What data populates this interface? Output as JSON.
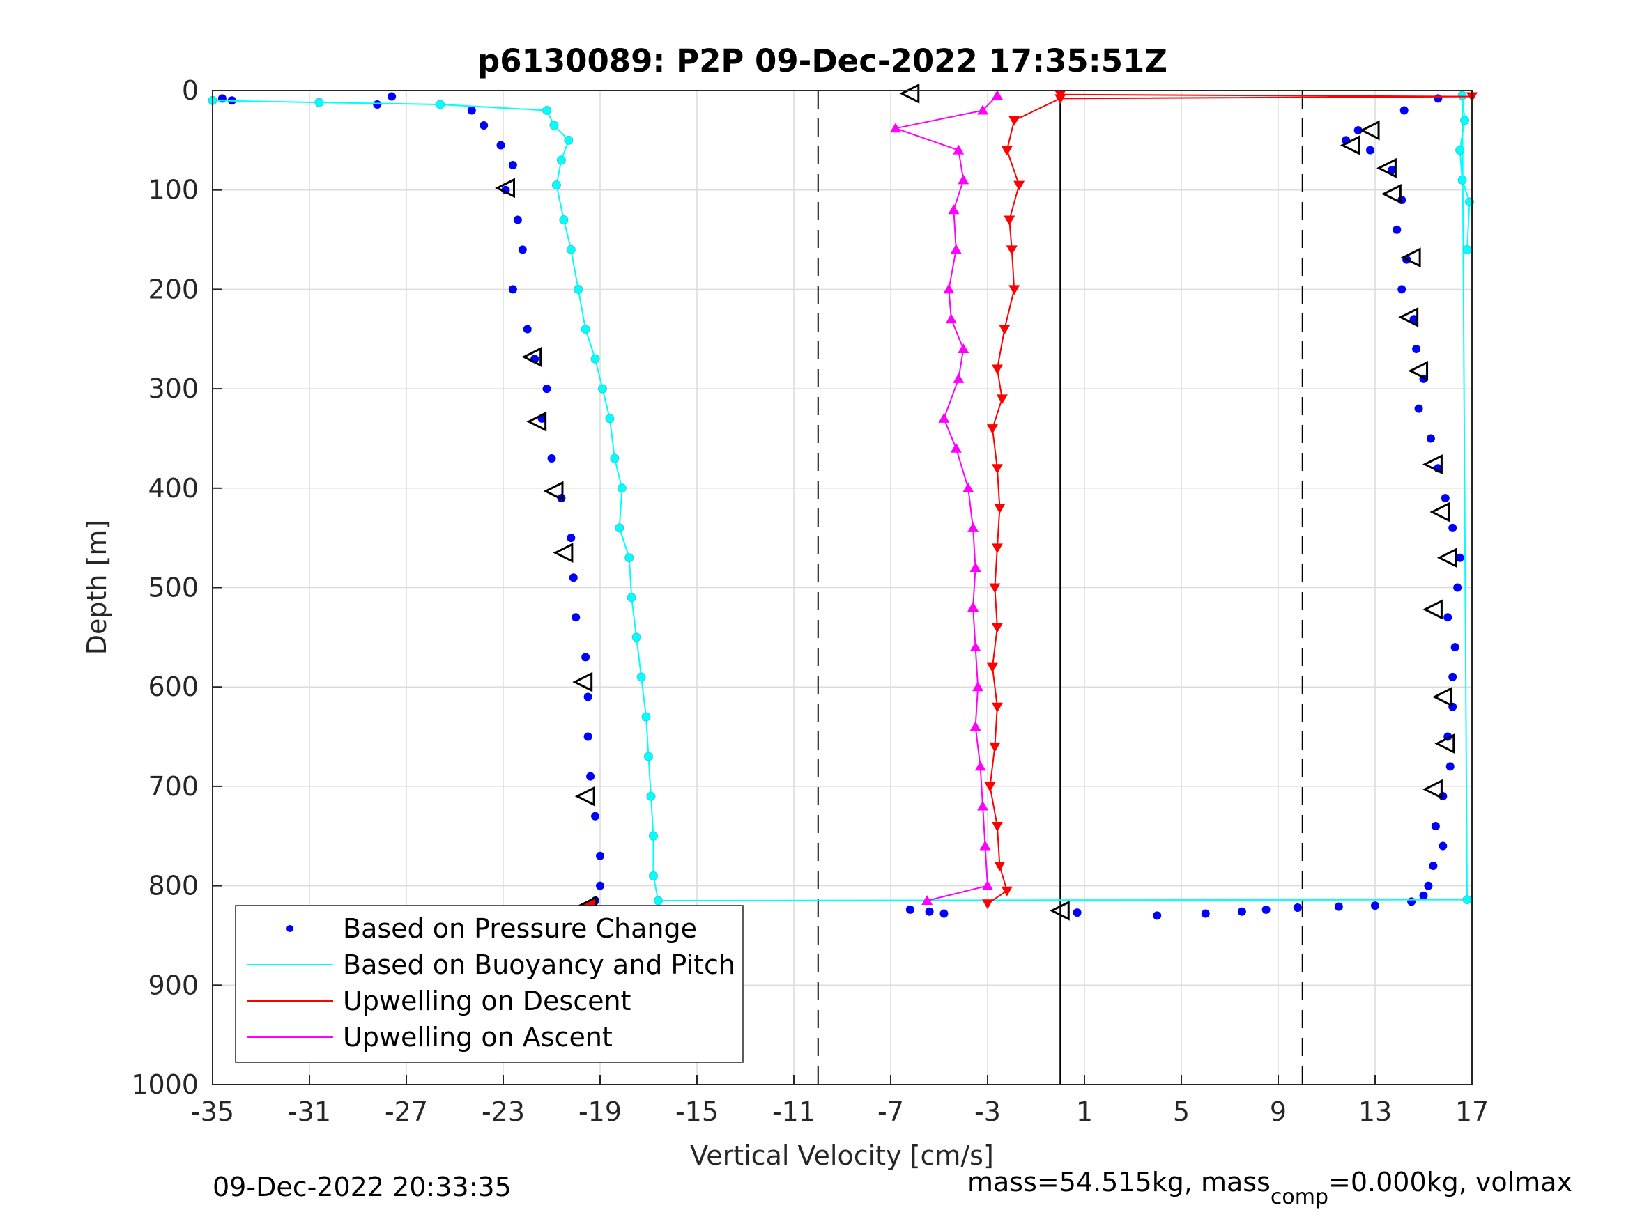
{
  "chart_data": {
    "type": "scatter",
    "title": "p6130089: P2P 09-Dec-2022 17:35:51Z",
    "xlabel": "Vertical Velocity [cm/s]",
    "ylabel": "Depth [m]",
    "xlim": [
      -35,
      17
    ],
    "ylim": [
      0,
      1000
    ],
    "y_reversed": true,
    "grid": true,
    "x_ticks": [
      -35,
      -31,
      -27,
      -23,
      -19,
      -15,
      -11,
      -7,
      -3,
      1,
      5,
      9,
      13,
      17
    ],
    "y_ticks": [
      0,
      100,
      200,
      300,
      400,
      500,
      600,
      700,
      800,
      900,
      1000
    ],
    "reference_lines": [
      {
        "x": -10,
        "style": "dashed",
        "color": "#000000"
      },
      {
        "x": 10,
        "style": "dashed",
        "color": "#000000"
      },
      {
        "x": 0,
        "style": "solid",
        "color": "#000000"
      }
    ],
    "legend": {
      "position": "bottom-left",
      "entries": [
        {
          "label": "Based on Pressure Change",
          "color": "#0000ff",
          "marker": "dot"
        },
        {
          "label": "Based on Buoyancy and Pitch",
          "color": "#00ffff",
          "marker": "line"
        },
        {
          "label": "Upwelling on Descent",
          "color": "#ff0000",
          "marker": "line"
        },
        {
          "label": "Upwelling on Ascent",
          "color": "#ff00ff",
          "marker": "line"
        }
      ]
    },
    "series": [
      {
        "name": "Based on Pressure Change",
        "color": "#0000ff",
        "segment": "descent",
        "points": [
          [
            -34.6,
            8
          ],
          [
            -34.2,
            10
          ],
          [
            -28.2,
            14
          ],
          [
            -27.6,
            6
          ],
          [
            -24.3,
            20
          ],
          [
            -23.8,
            35
          ],
          [
            -23.1,
            55
          ],
          [
            -22.6,
            75
          ],
          [
            -22.9,
            100
          ],
          [
            -22.4,
            130
          ],
          [
            -22.2,
            160
          ],
          [
            -22.6,
            200
          ],
          [
            -22.0,
            240
          ],
          [
            -21.7,
            270
          ],
          [
            -21.2,
            300
          ],
          [
            -21.4,
            330
          ],
          [
            -21.0,
            370
          ],
          [
            -20.6,
            410
          ],
          [
            -20.2,
            450
          ],
          [
            -20.1,
            490
          ],
          [
            -20.0,
            530
          ],
          [
            -19.6,
            570
          ],
          [
            -19.5,
            610
          ],
          [
            -19.5,
            650
          ],
          [
            -19.4,
            690
          ],
          [
            -19.2,
            730
          ],
          [
            -19.0,
            770
          ],
          [
            -19.0,
            800
          ],
          [
            -19.2,
            815
          ]
        ]
      },
      {
        "name": "Based on Pressure Change",
        "color": "#0000ff",
        "segment": "ascent",
        "points": [
          [
            -6.2,
            824
          ],
          [
            -5.4,
            826
          ],
          [
            -4.8,
            828
          ],
          [
            0.7,
            827
          ],
          [
            4.0,
            830
          ],
          [
            6.0,
            828
          ],
          [
            7.5,
            826
          ],
          [
            8.5,
            824
          ],
          [
            9.8,
            822
          ],
          [
            11.5,
            821
          ],
          [
            13.0,
            820
          ],
          [
            14.5,
            816
          ],
          [
            15.0,
            810
          ],
          [
            15.2,
            800
          ],
          [
            15.4,
            780
          ],
          [
            15.8,
            760
          ],
          [
            15.5,
            740
          ],
          [
            15.8,
            710
          ],
          [
            16.1,
            680
          ],
          [
            16.0,
            650
          ],
          [
            16.2,
            620
          ],
          [
            16.2,
            590
          ],
          [
            16.3,
            560
          ],
          [
            16.0,
            530
          ],
          [
            16.4,
            500
          ],
          [
            16.5,
            470
          ],
          [
            16.2,
            440
          ],
          [
            15.9,
            410
          ],
          [
            15.6,
            380
          ],
          [
            15.3,
            350
          ],
          [
            14.8,
            320
          ],
          [
            15.0,
            290
          ],
          [
            14.7,
            260
          ],
          [
            14.6,
            230
          ],
          [
            14.1,
            200
          ],
          [
            14.3,
            170
          ],
          [
            13.9,
            140
          ],
          [
            14.1,
            110
          ],
          [
            13.7,
            80
          ],
          [
            12.8,
            60
          ],
          [
            12.3,
            40
          ],
          [
            14.2,
            20
          ],
          [
            15.6,
            8
          ],
          [
            11.8,
            50
          ]
        ]
      },
      {
        "name": "Based on Buoyancy and Pitch",
        "color": "#00ffff",
        "points": [
          [
            -35.0,
            10
          ],
          [
            -30.6,
            12
          ],
          [
            -25.6,
            14
          ],
          [
            -21.2,
            20
          ],
          [
            -20.9,
            35
          ],
          [
            -20.3,
            50
          ],
          [
            -20.6,
            70
          ],
          [
            -20.8,
            95
          ],
          [
            -20.5,
            130
          ],
          [
            -20.2,
            160
          ],
          [
            -19.9,
            200
          ],
          [
            -19.6,
            240
          ],
          [
            -19.2,
            270
          ],
          [
            -18.9,
            300
          ],
          [
            -18.6,
            330
          ],
          [
            -18.4,
            370
          ],
          [
            -18.1,
            400
          ],
          [
            -18.2,
            440
          ],
          [
            -17.8,
            470
          ],
          [
            -17.7,
            510
          ],
          [
            -17.5,
            550
          ],
          [
            -17.3,
            590
          ],
          [
            -17.1,
            630
          ],
          [
            -17.0,
            670
          ],
          [
            -16.9,
            710
          ],
          [
            -16.8,
            750
          ],
          [
            -16.8,
            790
          ],
          [
            -16.6,
            815
          ],
          [
            16.8,
            814
          ],
          [
            16.6,
            5
          ],
          [
            16.7,
            30
          ],
          [
            16.5,
            60
          ],
          [
            16.6,
            90
          ],
          [
            16.9,
            112
          ],
          [
            16.8,
            160
          ]
        ]
      },
      {
        "name": "Upwelling on Descent",
        "color": "#ff0000",
        "points": [
          [
            0,
            4
          ],
          [
            17,
            6
          ],
          [
            0,
            8
          ],
          [
            -1.9,
            30
          ],
          [
            -2.2,
            60
          ],
          [
            -1.7,
            95
          ],
          [
            -2.1,
            130
          ],
          [
            -2.0,
            160
          ],
          [
            -1.9,
            200
          ],
          [
            -2.3,
            240
          ],
          [
            -2.6,
            280
          ],
          [
            -2.4,
            310
          ],
          [
            -2.8,
            340
          ],
          [
            -2.6,
            380
          ],
          [
            -2.5,
            420
          ],
          [
            -2.6,
            460
          ],
          [
            -2.7,
            500
          ],
          [
            -2.6,
            540
          ],
          [
            -2.8,
            580
          ],
          [
            -2.6,
            620
          ],
          [
            -2.7,
            660
          ],
          [
            -2.9,
            700
          ],
          [
            -2.6,
            740
          ],
          [
            -2.5,
            780
          ],
          [
            -2.2,
            805
          ],
          [
            -3.0,
            818
          ]
        ]
      },
      {
        "name": "Upwelling on Ascent",
        "color": "#ff00ff",
        "points": [
          [
            -2.6,
            5
          ],
          [
            -3.2,
            20
          ],
          [
            -6.8,
            38
          ],
          [
            -4.2,
            60
          ],
          [
            -4.0,
            90
          ],
          [
            -4.4,
            120
          ],
          [
            -4.3,
            160
          ],
          [
            -4.6,
            200
          ],
          [
            -4.5,
            230
          ],
          [
            -4.0,
            260
          ],
          [
            -4.2,
            290
          ],
          [
            -4.8,
            330
          ],
          [
            -4.3,
            360
          ],
          [
            -3.8,
            400
          ],
          [
            -3.6,
            440
          ],
          [
            -3.5,
            480
          ],
          [
            -3.6,
            520
          ],
          [
            -3.5,
            560
          ],
          [
            -3.4,
            600
          ],
          [
            -3.5,
            640
          ],
          [
            -3.3,
            680
          ],
          [
            -3.2,
            720
          ],
          [
            -3.1,
            760
          ],
          [
            -3.0,
            800
          ],
          [
            -5.5,
            815
          ]
        ]
      }
    ],
    "direction_markers": [
      {
        "x": -6.2,
        "y": 3,
        "color": "#000000"
      },
      {
        "x": -22.9,
        "y": 98,
        "color": "#000000"
      },
      {
        "x": -21.8,
        "y": 268,
        "color": "#000000"
      },
      {
        "x": -21.6,
        "y": 333,
        "color": "#000000"
      },
      {
        "x": -20.9,
        "y": 403,
        "color": "#000000"
      },
      {
        "x": -20.5,
        "y": 465,
        "color": "#000000"
      },
      {
        "x": -19.7,
        "y": 595,
        "color": "#000000"
      },
      {
        "x": -19.6,
        "y": 710,
        "color": "#000000"
      },
      {
        "x": -19.5,
        "y": 820,
        "color": "#ff0000"
      },
      {
        "x": 12.8,
        "y": 40,
        "color": "#000000"
      },
      {
        "x": 12.0,
        "y": 55,
        "color": "#000000"
      },
      {
        "x": 13.5,
        "y": 78,
        "color": "#000000"
      },
      {
        "x": 13.7,
        "y": 104,
        "color": "#000000"
      },
      {
        "x": 14.5,
        "y": 168,
        "color": "#000000"
      },
      {
        "x": 14.4,
        "y": 228,
        "color": "#000000"
      },
      {
        "x": 14.8,
        "y": 282,
        "color": "#000000"
      },
      {
        "x": 15.4,
        "y": 376,
        "color": "#000000"
      },
      {
        "x": 15.7,
        "y": 424,
        "color": "#000000"
      },
      {
        "x": 16.0,
        "y": 470,
        "color": "#000000"
      },
      {
        "x": 15.4,
        "y": 522,
        "color": "#000000"
      },
      {
        "x": 15.8,
        "y": 610,
        "color": "#000000"
      },
      {
        "x": 15.9,
        "y": 657,
        "color": "#000000"
      },
      {
        "x": 15.4,
        "y": 703,
        "color": "#000000"
      },
      {
        "x": 0,
        "y": 825,
        "color": "#000000"
      }
    ]
  },
  "footer": {
    "timestamp": "09-Dec-2022 20:33:35",
    "mass_text_1": "mass=54.515kg, mass",
    "mass_sub": "comp",
    "mass_text_2": "=0.000kg, volmax"
  }
}
